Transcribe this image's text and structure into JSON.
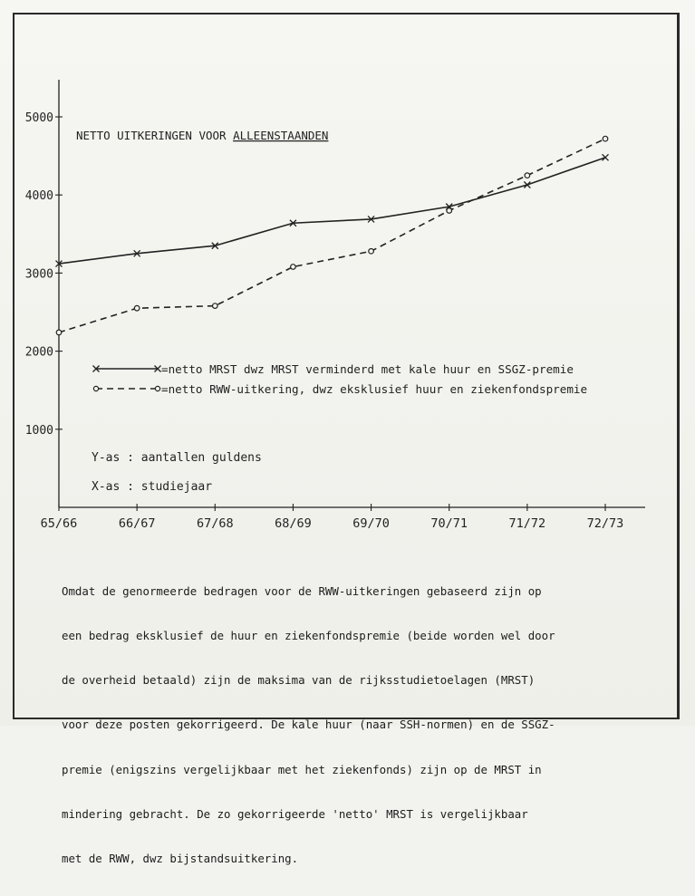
{
  "chart_data": {
    "type": "line",
    "title": "NETTO UITKERINGEN VOOR ALLEENSTAANDEN",
    "title_plain": "NETTO UITKERINGEN VOOR ",
    "title_underlined": "ALLEENSTAANDEN",
    "categories": [
      "65/66",
      "66/67",
      "67/68",
      "68/69",
      "69/70",
      "70/71",
      "71/72",
      "72/73"
    ],
    "ylim": [
      0,
      5500
    ],
    "yticks": [
      1000,
      2000,
      3000,
      4000,
      5000
    ],
    "ytick_labels": [
      "1000",
      "2000",
      "3000",
      "4000",
      "5000"
    ],
    "series": [
      {
        "name": "=netto MRST   dwz MRST verminderd met kale huur en SSGZ-premie",
        "style": "solid",
        "marker": "x",
        "values": [
          3120,
          3250,
          3350,
          3640,
          3690,
          3850,
          4130,
          4480
        ]
      },
      {
        "name": "=netto RWW-uitkering, dwz eksklusief huur en ziekenfondspremie",
        "style": "dashed",
        "marker": "o",
        "values": [
          2240,
          2550,
          2580,
          3080,
          3280,
          3800,
          4250,
          4720
        ]
      }
    ],
    "annotations": [
      "Y-as : aantallen guldens",
      "X-as : studiejaar"
    ],
    "legend_position": "middle-right",
    "grid": false,
    "colors": {
      "ink": "#222222",
      "paper": "#f2f2ee"
    }
  },
  "caption_lines": [
    "Omdat de genormeerde bedragen voor de RWW-uitkeringen gebaseerd zijn op",
    "een bedrag eksklusief de huur en ziekenfondspremie (beide worden wel door",
    "de overheid betaald) zijn de maksima van de rijksstudietoelagen (MRST)",
    "voor deze posten gekorrigeerd. De kale huur (naar SSH-normen) en de SSGZ-",
    "premie (enigszins vergelijkbaar met het ziekenfonds) zijn op de MRST in",
    "mindering gebracht. De zo gekorrigeerde 'netto' MRST is vergelijkbaar",
    "met de RWW, dwz bijstandsuitkering."
  ]
}
